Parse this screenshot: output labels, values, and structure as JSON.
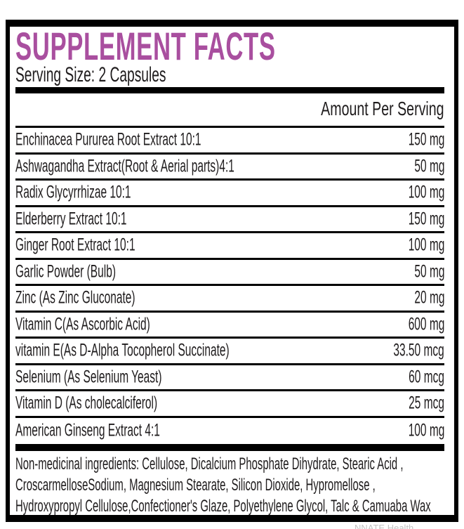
{
  "label": {
    "title": "SUPPLEMENT FACTS",
    "serving_size": "Serving Size: 2 Capsules",
    "amount_header": "Amount Per Serving",
    "rows": [
      {
        "name": "Enchinacea Pururea Root Extract 10:1",
        "amount": "150 mg"
      },
      {
        "name": "Ashwagandha Extract(Root & Aerial parts)4:1",
        "amount": "50 mg"
      },
      {
        "name": "Radix Glycyrrhizae 10:1",
        "amount": "100 mg"
      },
      {
        "name": "Elderberry Extract 10:1",
        "amount": "150 mg"
      },
      {
        "name": "Ginger Root Extract 10:1",
        "amount": "100 mg"
      },
      {
        "name": "Garlic Powder (Bulb)",
        "amount": "50 mg"
      },
      {
        "name": "Zinc (As Zinc Gluconate)",
        "amount": "20 mg"
      },
      {
        "name": "Vitamin C(As Ascorbic Acid)",
        "amount": "600 mg"
      },
      {
        "name": "vitamin E(As D-Alpha Tocopherol Succinate)",
        "amount": "33.50 mcg"
      },
      {
        "name": "Selenium (As Selenium Yeast)",
        "amount": "60 mcg"
      },
      {
        "name": "Vitamin D (As cholecalciferol)",
        "amount": "25 mcg"
      },
      {
        "name": "American Ginseng Extract 4:1",
        "amount": "100 mg"
      }
    ],
    "non_medicinal": {
      "lines": [
        "Non-medicinal ingredients: Cellulose, Dicalcium Phosphate Dihydrate, Stearic Acid ,",
        "CroscarmelloseSodium, Magnesium Stearate, Silicon Dioxide, Hypromellose ,",
        "Hydroxypropyl Cellulose,Confectioner's Glaze, Polyethylene Glycol, Talc & Camuaba Wax"
      ]
    },
    "footer_watermark": "NNATE Health"
  },
  "colors": {
    "title_accent": "#a94f9f",
    "body_text": "#1f1c1d",
    "rule": "#000000"
  }
}
